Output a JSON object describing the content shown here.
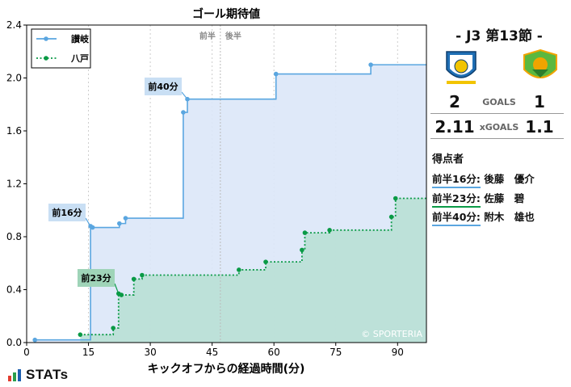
{
  "chart_data": {
    "type": "line",
    "title": "ゴール期待値",
    "xlabel": "キックオフからの経過時間(分)",
    "ylabel": "",
    "xlim": [
      0,
      97
    ],
    "ylim": [
      0,
      2.4
    ],
    "xticks": [
      0,
      15,
      30,
      45,
      60,
      75,
      90
    ],
    "yticks": [
      0.0,
      0.4,
      0.8,
      1.2,
      1.6,
      2.0,
      2.4
    ],
    "grid": "vertical dotted",
    "legend_position": "top-left",
    "halftime_labels": [
      "前半",
      "後半"
    ],
    "halftime_minute": 47,
    "watermark": "© SPORTERIA",
    "series": [
      {
        "name": "讃岐",
        "color": "#5aa6e0",
        "fill": "#dbe7f8",
        "line_style": "solid",
        "points": [
          [
            2,
            0.02
          ],
          [
            15.5,
            0.88
          ],
          [
            16,
            0.87
          ],
          [
            22.5,
            0.9
          ],
          [
            24,
            0.94
          ],
          [
            38,
            1.74
          ],
          [
            39,
            1.84
          ],
          [
            60.5,
            2.03
          ],
          [
            83.5,
            2.1
          ],
          [
            97,
            2.1
          ]
        ]
      },
      {
        "name": "八戸",
        "color": "#0a9a46",
        "fill": "#b7dfd4",
        "line_style": "dotted",
        "points": [
          [
            13,
            0.06
          ],
          [
            21,
            0.11
          ],
          [
            22.3,
            0.37
          ],
          [
            23,
            0.36
          ],
          [
            26,
            0.48
          ],
          [
            28,
            0.51
          ],
          [
            51.5,
            0.55
          ],
          [
            58,
            0.61
          ],
          [
            66.8,
            0.7
          ],
          [
            67.5,
            0.83
          ],
          [
            73.5,
            0.85
          ],
          [
            88.5,
            0.95
          ],
          [
            89.5,
            1.09
          ],
          [
            97,
            1.09
          ]
        ]
      }
    ],
    "annotations": [
      {
        "label": "前16分",
        "minute": 15.5,
        "value": 0.88,
        "team": "home"
      },
      {
        "label": "前23分",
        "minute": 22.3,
        "value": 0.37,
        "team": "away"
      },
      {
        "label": "前40分",
        "minute": 39,
        "value": 1.84,
        "team": "home"
      }
    ]
  },
  "panel": {
    "match_title": "- J3 第13節 -",
    "home_crest": "kamatamare-sanuki-crest",
    "away_crest": "vanraure-hachinohe-crest",
    "goals_home": "2",
    "goals_label": "GOALS",
    "goals_away": "1",
    "xg_home": "2.11",
    "xg_label": "xGOALS",
    "xg_away": "1.1",
    "scorers_title": "得点者",
    "scorers": [
      {
        "time": "前半16分:",
        "name": "後藤　優介",
        "color": "#5aa6e0"
      },
      {
        "time": "前半23分:",
        "name": "佐藤　碧",
        "color": "#0a9a46"
      },
      {
        "time": "前半40分:",
        "name": "附木　雄也",
        "color": "#5aa6e0"
      }
    ]
  },
  "brand": {
    "name": "STATs"
  }
}
